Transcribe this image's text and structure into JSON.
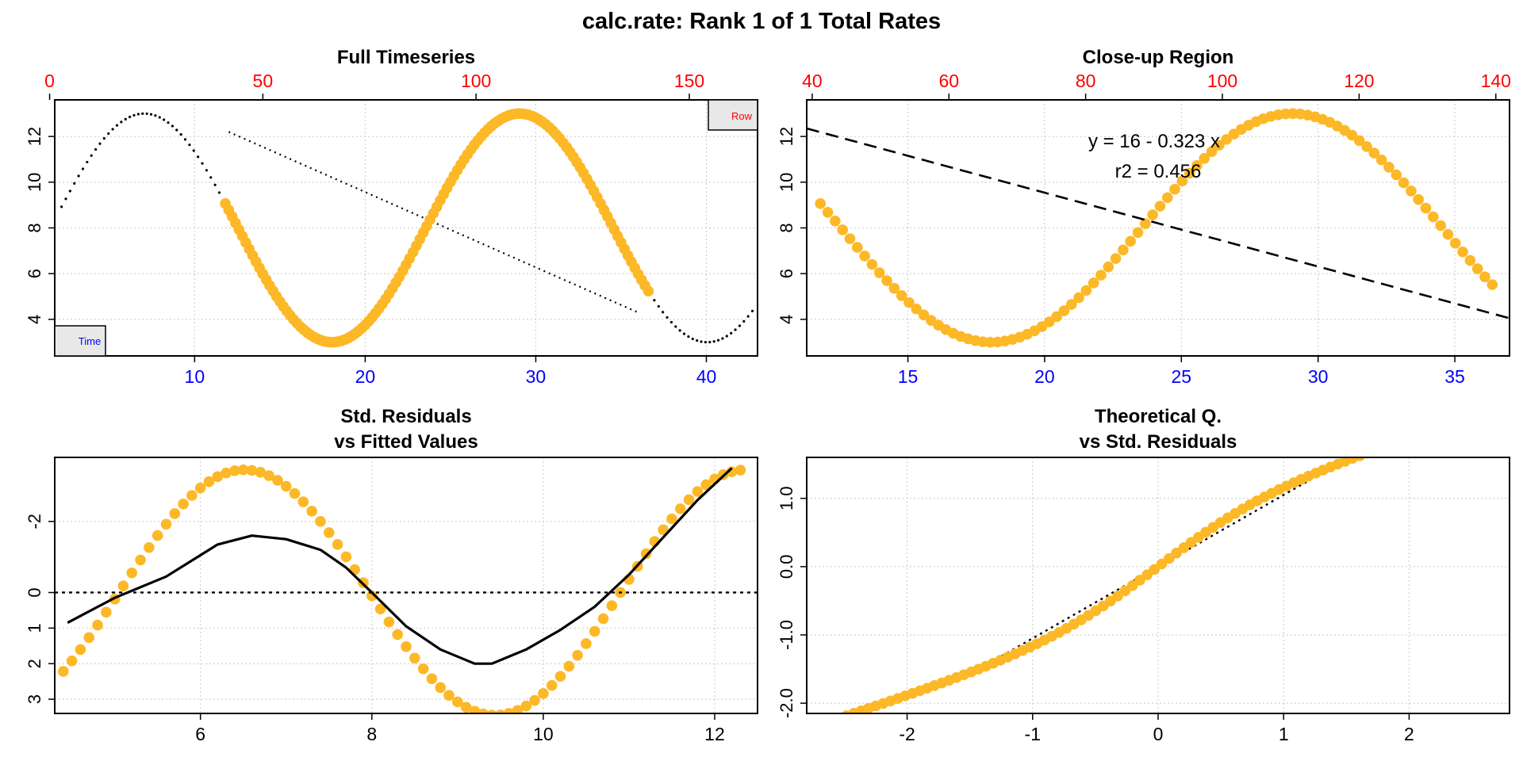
{
  "page_title": "calc.rate: Rank 1 of 1 Total Rates",
  "colors": {
    "points": "#FDB827",
    "frame": "#000000",
    "grid": "#C8C8C8",
    "top_axis": "#FF0000",
    "bottom_axis": "#0000FF",
    "time_label": "#0000FF",
    "row_label": "#FF0000"
  },
  "chart_data": [
    {
      "type": "scatter",
      "title": "Full Timeseries",
      "xlabel": "",
      "ylabel": "",
      "xlim": [
        1.8,
        43.0
      ],
      "ylim": [
        2.4,
        13.6
      ],
      "x_ticks": [
        10,
        20,
        30,
        40
      ],
      "y_ticks": [
        4,
        6,
        8,
        10,
        12
      ],
      "top_axis": {
        "ticks": [
          0,
          50,
          100,
          150
        ],
        "offset_from_bottom": -6
      },
      "grid": true,
      "legend_boxes": {
        "left": "Time",
        "right": "Row"
      },
      "series": [
        {
          "role": "background-dotted",
          "x_range": [
            2.2,
            42.8
          ]
        },
        {
          "role": "selected-points",
          "x_range": [
            11.8,
            36.6
          ]
        },
        {
          "role": "fit-line-dotted",
          "x": [
            12.0,
            36.0
          ],
          "y": [
            12.2,
            4.3
          ]
        }
      ]
    },
    {
      "type": "scatter",
      "title": "Close-up Region",
      "xlabel": "",
      "ylabel": "",
      "xlim": [
        11.3,
        37.0
      ],
      "ylim": [
        2.4,
        13.6
      ],
      "x_ticks": [
        15,
        20,
        25,
        30,
        35
      ],
      "y_ticks": [
        4,
        6,
        8,
        10,
        12
      ],
      "top_axis": {
        "ticks": [
          40,
          60,
          80,
          100,
          120,
          140
        ],
        "offset_from_bottom": -6
      },
      "grid": true,
      "annotations": [
        "y = 16 - 0.323 x",
        "r2 = 0.456"
      ],
      "series": [
        {
          "role": "selected-points",
          "x_range": [
            11.8,
            36.6
          ]
        },
        {
          "role": "fit-line-dashed",
          "intercept": 16,
          "slope": -0.323
        }
      ]
    },
    {
      "type": "scatter",
      "title": "Std. Residuals",
      "subtitle": "vs Fitted Values",
      "xlabel": "",
      "ylabel": "",
      "xlim": [
        4.3,
        12.5
      ],
      "ylim": [
        3.4,
        -3.8
      ],
      "x_ticks": [
        6,
        8,
        10,
        12
      ],
      "y_ticks": [
        3,
        2,
        1,
        0,
        -2
      ],
      "grid": true,
      "series": [
        {
          "role": "residual-points",
          "x_range": [
            4.4,
            12.3
          ]
        },
        {
          "role": "smoother",
          "x": [
            4.45,
            5.0,
            5.6,
            6.2,
            6.6,
            7.0,
            7.4,
            7.7,
            8.0,
            8.4,
            8.8,
            9.2,
            9.4,
            9.8,
            10.2,
            10.6,
            11.0,
            11.4,
            11.8,
            12.2
          ],
          "y": [
            0.85,
            0.15,
            -0.45,
            -1.35,
            -1.6,
            -1.5,
            -1.2,
            -0.7,
            0.0,
            0.95,
            1.6,
            2.0,
            2.0,
            1.6,
            1.05,
            0.4,
            -0.5,
            -1.55,
            -2.6,
            -3.5
          ]
        },
        {
          "role": "zero-line-dotted",
          "y": 0
        }
      ]
    },
    {
      "type": "scatter",
      "title": "Theoretical Q.",
      "subtitle": "vs Std. Residuals",
      "xlabel": "",
      "ylabel": "",
      "xlim": [
        -2.8,
        2.8
      ],
      "ylim": [
        -2.15,
        1.6
      ],
      "x_ticks": [
        -2,
        -1,
        0,
        1,
        2
      ],
      "y_ticks": [
        -2.0,
        -1.0,
        0.0,
        1.0
      ],
      "y_tick_labels": [
        "-2.0",
        "-1.0",
        "0.0",
        "1.0"
      ],
      "grid": true,
      "series": [
        {
          "role": "qq-points",
          "x_range": [
            -2.6,
            2.6
          ]
        },
        {
          "role": "qq-line-dotted",
          "slope": 1.05,
          "intercept": 0
        }
      ]
    }
  ]
}
